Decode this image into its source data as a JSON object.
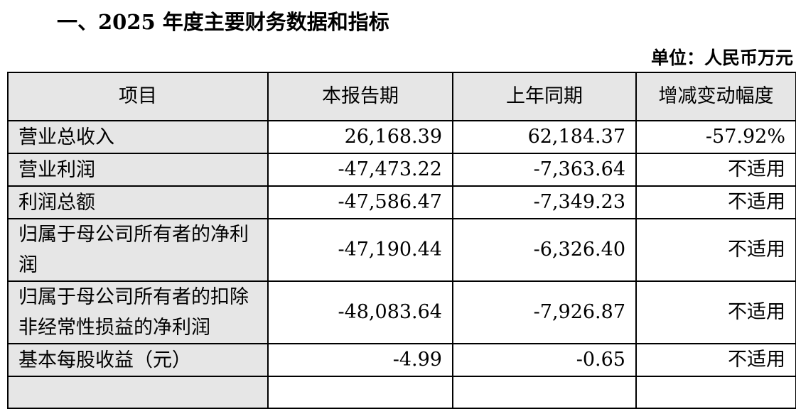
{
  "title": "一、2025 年度主要财务数据和指标",
  "unit": "单位：人民币万元",
  "headers": [
    "项目",
    "本报告期",
    "上年同期",
    "增减变动幅度"
  ],
  "rows": [
    [
      "营业总收入",
      "26,168.39",
      "62,184.37",
      "-57.92%"
    ],
    [
      "营业利润",
      "-47,473.22",
      "-7,363.64",
      "不适用"
    ],
    [
      "利润总额",
      "-47,586.47",
      "-7,349.23",
      "不适用"
    ],
    [
      "归属于母公司所有者的净利润",
      "-47,190.44",
      "-6,326.40",
      "不适用"
    ],
    [
      "归属于母公司所有者的扣除非经常性损益的净利润",
      "-48,083.64",
      "-7,926.87",
      "不适用"
    ],
    [
      "基本每股收益（元）",
      "-4.99",
      "-0.65",
      "不适用"
    ]
  ]
}
